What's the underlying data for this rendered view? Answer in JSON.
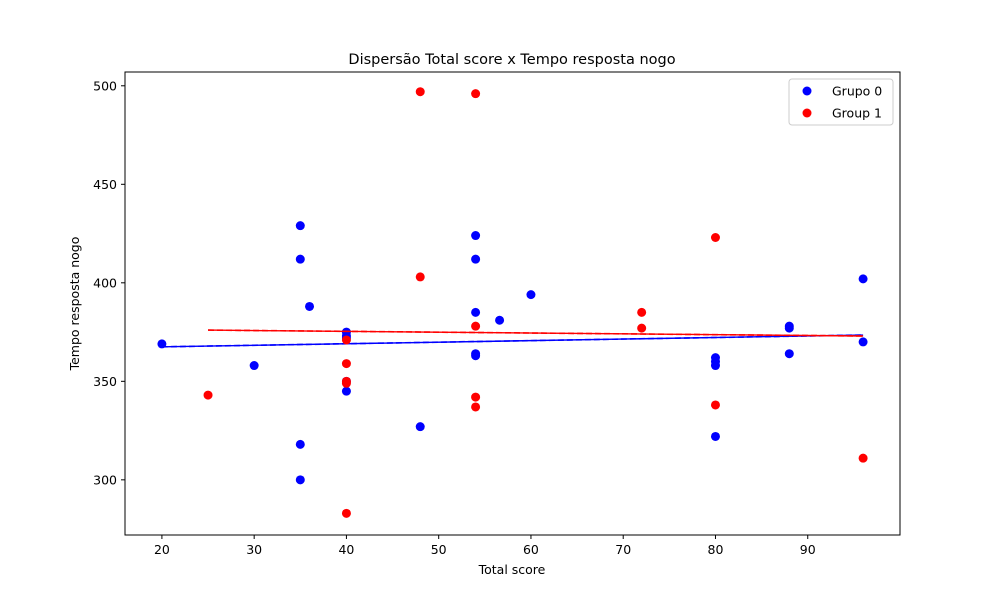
{
  "chart_data": {
    "type": "scatter",
    "title": "Dispersão Total score x Tempo resposta nogo",
    "xlabel": "Total score",
    "ylabel": "Tempo resposta nogo",
    "xlim": [
      16,
      100
    ],
    "ylim": [
      272,
      507
    ],
    "xticks": [
      20,
      30,
      40,
      50,
      60,
      70,
      80,
      90
    ],
    "yticks": [
      300,
      350,
      400,
      450,
      500
    ],
    "grid": false,
    "legend_position": "top-right",
    "series": [
      {
        "name": "Grupo 0",
        "color": "#0000ff",
        "points": [
          [
            20,
            369
          ],
          [
            30,
            358
          ],
          [
            35,
            429
          ],
          [
            35,
            412
          ],
          [
            35,
            318
          ],
          [
            35,
            300
          ],
          [
            36,
            388
          ],
          [
            40,
            375
          ],
          [
            40,
            373
          ],
          [
            40,
            372
          ],
          [
            40,
            350
          ],
          [
            40,
            345
          ],
          [
            48,
            327
          ],
          [
            54,
            424
          ],
          [
            54,
            412
          ],
          [
            54,
            385
          ],
          [
            54,
            364
          ],
          [
            54,
            363
          ],
          [
            56.6,
            381
          ],
          [
            60,
            394
          ],
          [
            80,
            362
          ],
          [
            80,
            360
          ],
          [
            80,
            358
          ],
          [
            80,
            322
          ],
          [
            88,
            378
          ],
          [
            88,
            377
          ],
          [
            88,
            364
          ],
          [
            96,
            402
          ],
          [
            96,
            370
          ]
        ],
        "trend": {
          "x": [
            20,
            96
          ],
          "y": [
            367.5,
            373.5
          ]
        }
      },
      {
        "name": "Group 1",
        "color": "#ff0000",
        "points": [
          [
            25,
            343
          ],
          [
            40,
            371
          ],
          [
            40,
            359
          ],
          [
            40,
            350
          ],
          [
            40,
            349
          ],
          [
            40,
            283
          ],
          [
            48,
            497
          ],
          [
            48,
            403
          ],
          [
            54,
            496
          ],
          [
            54,
            378
          ],
          [
            54,
            342
          ],
          [
            54,
            337
          ],
          [
            72,
            385
          ],
          [
            72,
            377
          ],
          [
            80,
            423
          ],
          [
            80,
            338
          ],
          [
            96,
            311
          ]
        ],
        "trend": {
          "x": [
            25,
            96
          ],
          "y": [
            376,
            373
          ]
        }
      }
    ]
  }
}
